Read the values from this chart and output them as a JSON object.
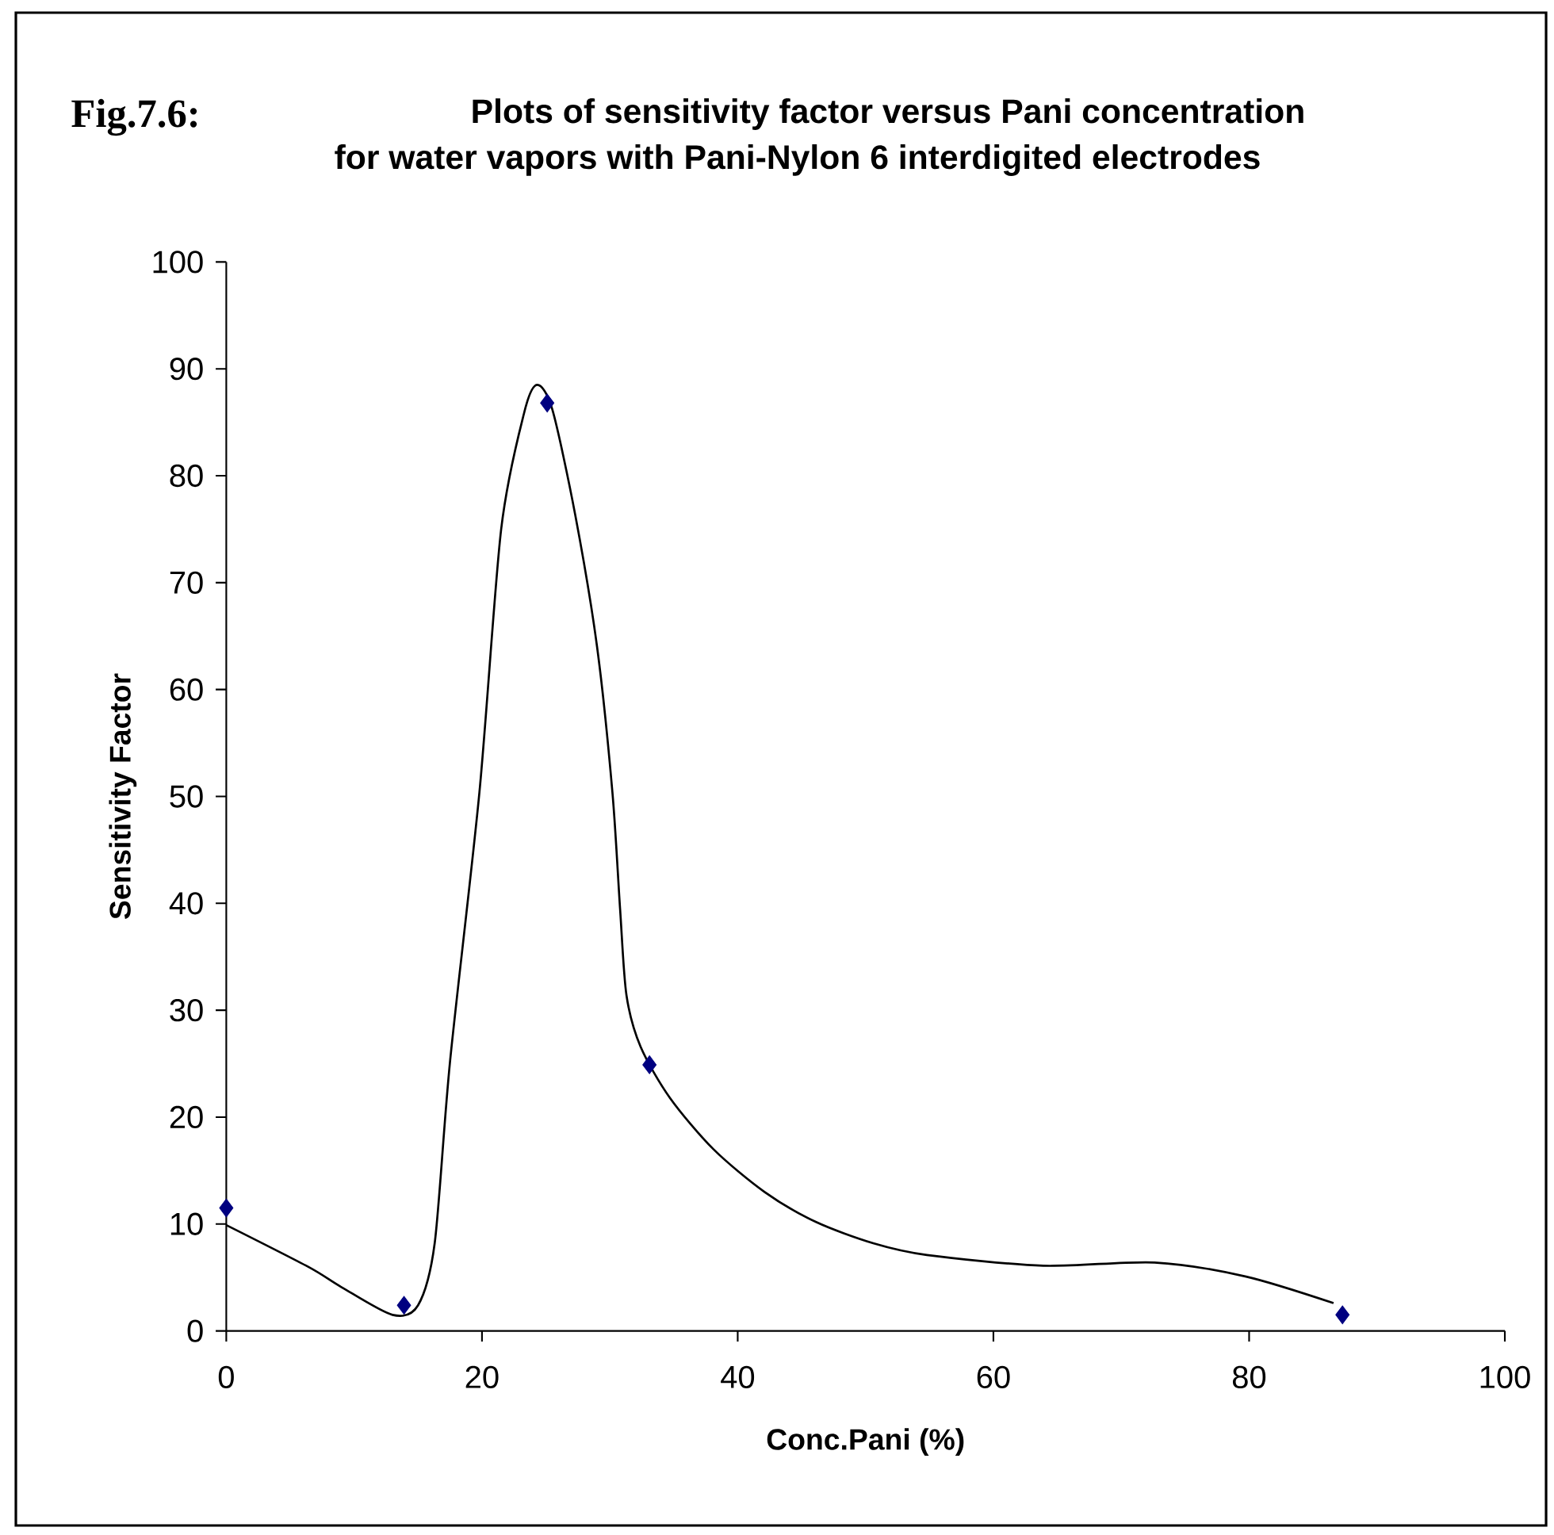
{
  "chart_data": {
    "type": "scatter",
    "title": "Plots of sensitivity factor versus Pani concentration",
    "subtitle": "for water vapors with Pani-Nylon 6 interdigited electrodes",
    "annotations": [
      "Fig.7.6:"
    ],
    "xlabel": "Conc.Pani (%)",
    "ylabel": "Sensitivity Factor",
    "xlim": [
      0,
      100
    ],
    "ylim": [
      0,
      100
    ],
    "xticks": [
      0,
      20,
      40,
      60,
      80,
      100
    ],
    "yticks": [
      0,
      10,
      20,
      30,
      40,
      50,
      60,
      70,
      80,
      90,
      100
    ],
    "marker": "diamond",
    "series": [
      {
        "color": "#000080",
        "x": [
          0,
          13.9,
          25.1,
          33.1,
          87.3
        ],
        "values": [
          11.5,
          2.4,
          86.8,
          24.9,
          1.5
        ]
      },
      {
        "type": "line",
        "color": "#000000",
        "marker": "none",
        "x": [
          0,
          6.4,
          9.0,
          13.0,
          15.0,
          16.3,
          17.5,
          19.8,
          21.5,
          23.3,
          24.3,
          25.5,
          27.3,
          29.0,
          30.2,
          30.8,
          31.3,
          32.4,
          34.7,
          38.1,
          42.1,
          46.1,
          50.6,
          54.8,
          63.9,
          72.6,
          79.7,
          86.6
        ],
        "values": [
          9.9,
          6.0,
          4.1,
          1.5,
          2.4,
          8.2,
          25.2,
          50.4,
          75,
          85.9,
          88.5,
          86.2,
          76.3,
          64,
          50.4,
          39.5,
          31.4,
          26.6,
          21.8,
          17,
          13,
          10.2,
          8.2,
          7.1,
          6.1,
          6.4,
          5.1,
          2.6
        ]
      }
    ]
  }
}
